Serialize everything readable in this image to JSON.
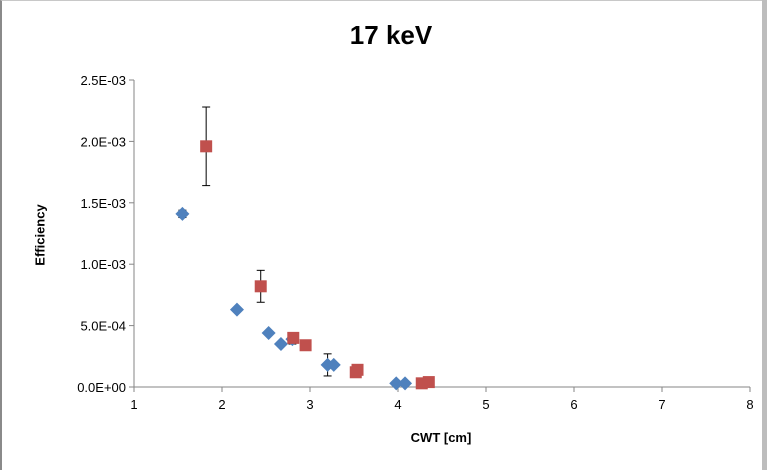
{
  "chart_data": {
    "type": "scatter",
    "title": "17 keV",
    "xlabel": "CWT [cm]",
    "ylabel": "Efficiency",
    "xlim": [
      1,
      8
    ],
    "ylim": [
      0,
      0.0025
    ],
    "x_ticks": [
      "1",
      "2",
      "3",
      "4",
      "5",
      "6",
      "7",
      "8"
    ],
    "y_ticks": [
      "0.0E+00",
      "5.0E-04",
      "1.0E-03",
      "1.5E-03",
      "2.0E-03",
      "2.5E-03"
    ],
    "grid": false,
    "series": [
      {
        "marker": "diamond",
        "color": "#4f81bd",
        "points": [
          {
            "x": 1.55,
            "y": 0.00141,
            "err": 3e-05
          },
          {
            "x": 2.17,
            "y": 0.00063
          },
          {
            "x": 2.53,
            "y": 0.00044
          },
          {
            "x": 2.67,
            "y": 0.00035
          },
          {
            "x": 2.8,
            "y": 0.00039,
            "err": 4e-05
          },
          {
            "x": 3.2,
            "y": 0.00018,
            "err": 9e-05
          },
          {
            "x": 3.27,
            "y": 0.00018
          },
          {
            "x": 3.98,
            "y": 3e-05
          },
          {
            "x": 4.08,
            "y": 3e-05
          }
        ]
      },
      {
        "marker": "square",
        "color": "#c0504d",
        "points": [
          {
            "x": 1.82,
            "y": 0.00196,
            "err": 0.00032
          },
          {
            "x": 2.44,
            "y": 0.00082,
            "err": 0.00013
          },
          {
            "x": 2.81,
            "y": 0.0004
          },
          {
            "x": 2.95,
            "y": 0.00034
          },
          {
            "x": 3.52,
            "y": 0.00012
          },
          {
            "x": 3.54,
            "y": 0.00014
          },
          {
            "x": 4.27,
            "y": 3e-05
          },
          {
            "x": 4.35,
            "y": 4e-05
          }
        ]
      }
    ]
  }
}
